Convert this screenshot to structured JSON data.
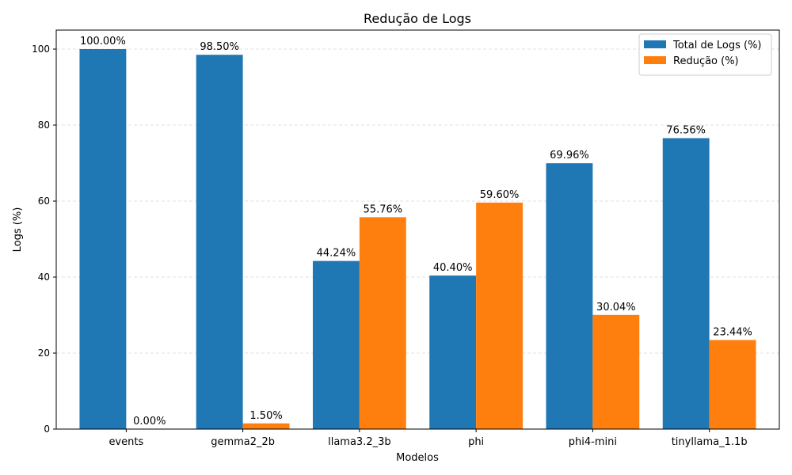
{
  "chart_data": {
    "type": "bar",
    "title": "Redução de Logs",
    "xlabel": "Modelos",
    "ylabel": "Logs (%)",
    "categories": [
      "events",
      "gemma2_2b",
      "llama3.2_3b",
      "phi",
      "phi4-mini",
      "tinyllama_1.1b"
    ],
    "series": [
      {
        "name": "Total de Logs (%)",
        "color": "#1f77b4",
        "values": [
          100.0,
          98.5,
          44.24,
          40.4,
          69.96,
          76.56
        ],
        "labels": [
          "100.00%",
          "98.50%",
          "44.24%",
          "40.40%",
          "69.96%",
          "76.56%"
        ]
      },
      {
        "name": "Redução (%)",
        "color": "#ff7f0e",
        "values": [
          0.0,
          1.5,
          55.76,
          59.6,
          30.04,
          23.44
        ],
        "labels": [
          "0.00%",
          "1.50%",
          "55.76%",
          "59.60%",
          "30.04%",
          "23.44%"
        ]
      }
    ],
    "ylim": [
      0,
      105
    ],
    "yticks": [
      0,
      20,
      40,
      60,
      80,
      100
    ],
    "grid": "y-dashed",
    "legend": "top-right"
  }
}
